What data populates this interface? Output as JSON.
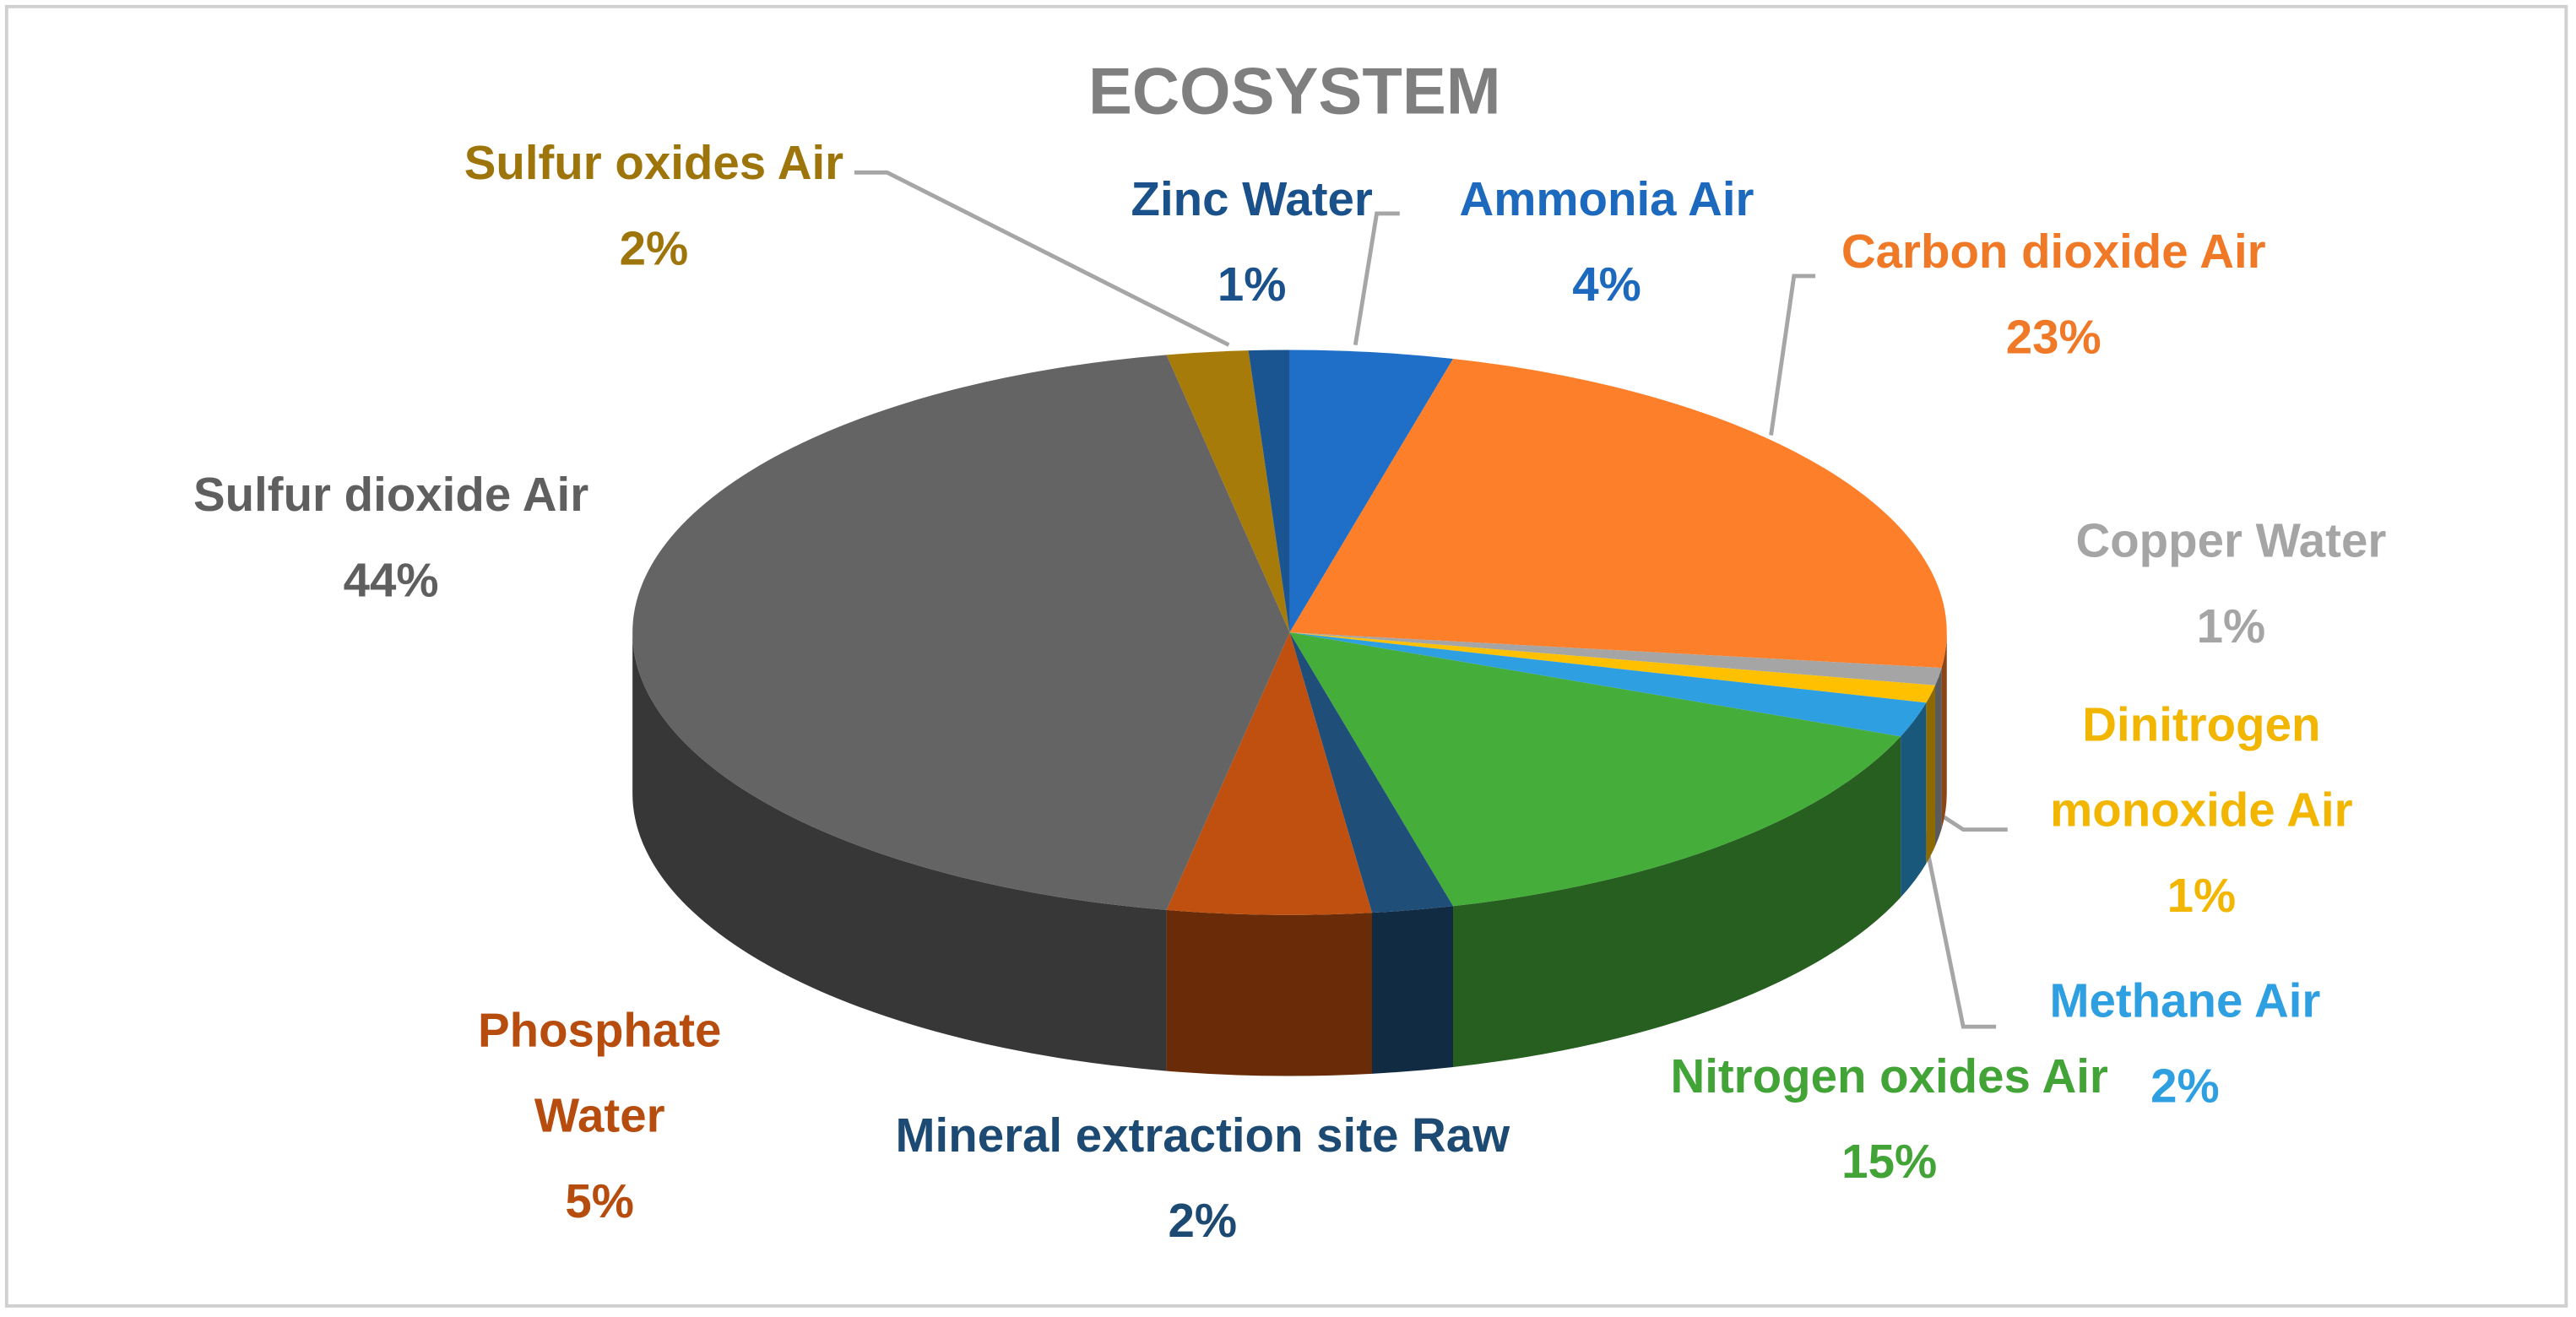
{
  "chart_data": {
    "type": "pie3d",
    "title": "ECOSYSTEM",
    "categories": [
      "Ammonia Air",
      "Carbon dioxide Air",
      "Copper Water",
      "Dinitrogen monoxide Air",
      "Methane Air",
      "Nitrogen oxides Air",
      "Mineral extraction site Raw",
      "Phosphate Water",
      "Sulfur dioxide Air",
      "Sulfur oxides Air",
      "Zinc Water"
    ],
    "values": [
      4,
      23,
      1,
      1,
      2,
      15,
      2,
      5,
      44,
      2,
      1
    ],
    "value_labels": [
      "4%",
      "23%",
      "1%",
      "1%",
      "2%",
      "15%",
      "2%",
      "5%",
      "44%",
      "2%",
      "1%"
    ],
    "colors": [
      "#1f6fc8",
      "#fd7f2a",
      "#a5a5a5",
      "#ffc000",
      "#2e9fe0",
      "#45ad3a",
      "#1f4e79",
      "#c0500f",
      "#646464",
      "#a67b0a",
      "#1b5591"
    ]
  }
}
